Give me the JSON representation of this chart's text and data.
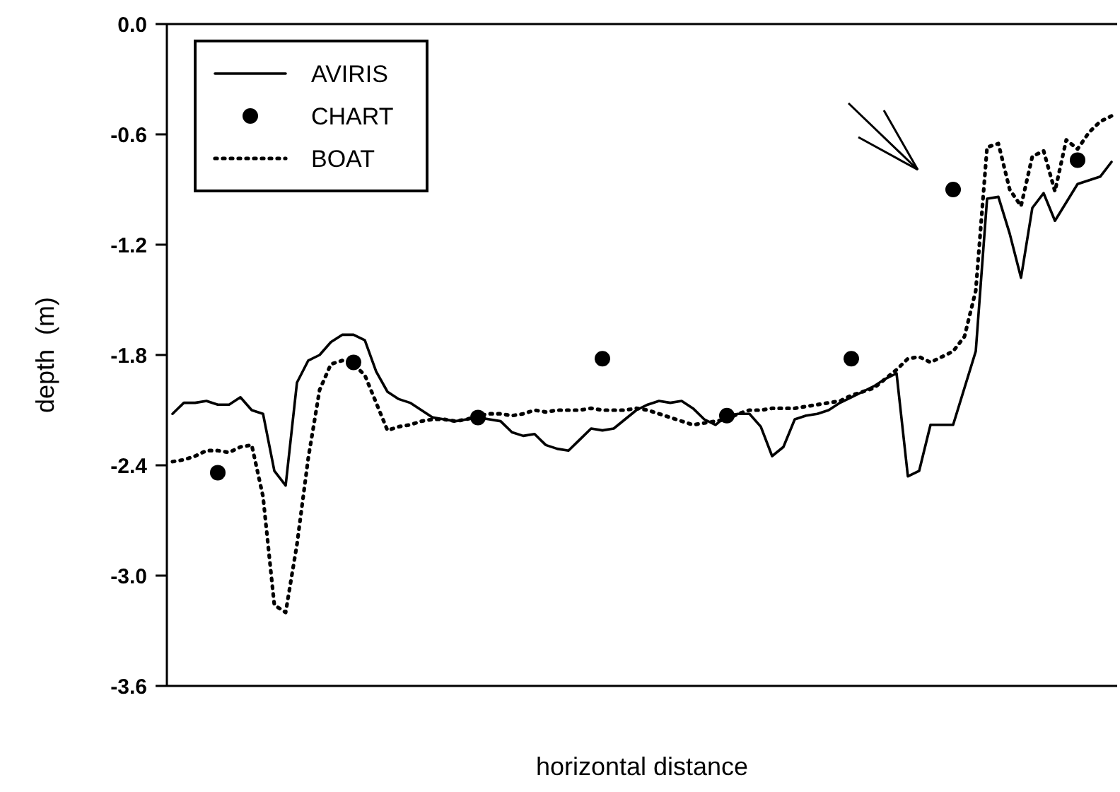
{
  "chart_data": {
    "type": "line",
    "xlabel": "horizontal distance",
    "ylabel": "depth  (m)",
    "ylim": [
      -3.6,
      0
    ],
    "yticks": [
      {
        "value": 0,
        "label": "0.0"
      },
      -0.6,
      -1.2,
      -1.8,
      -2.4,
      {
        "value": -3,
        "label": "-3.0"
      },
      -3.6
    ],
    "tick_labels": "y",
    "grid": false,
    "legend": "top left",
    "categories": [
      null,
      null,
      null,
      null,
      null,
      null,
      null,
      null,
      null,
      null,
      null,
      null,
      null,
      null,
      null,
      null,
      null,
      null,
      null,
      null,
      null,
      null,
      null,
      null,
      null,
      null,
      null,
      null,
      null,
      null,
      null,
      null,
      null,
      null,
      null,
      null,
      null,
      null,
      null,
      null,
      null,
      null,
      null,
      null,
      null,
      null,
      null,
      null,
      null,
      null,
      null,
      null,
      null,
      null,
      null,
      null,
      null,
      null,
      null,
      null,
      null,
      null,
      null,
      null,
      null,
      null,
      null,
      null,
      null,
      null,
      null,
      null,
      null,
      null,
      null,
      null,
      null,
      null,
      null,
      null,
      null,
      null,
      null,
      null
    ],
    "series": [
      {
        "name": "AVIRIS",
        "line_style": "solid",
        "marker": "none",
        "color": "#000000",
        "values": [
          -2.12,
          -2.06,
          -2.06,
          -2.05,
          -2.07,
          -2.07,
          -2.03,
          -2.1,
          -2.12,
          -2.43,
          -2.51,
          -1.95,
          -1.83,
          -1.8,
          -1.73,
          -1.69,
          -1.69,
          -1.72,
          -1.89,
          -2,
          -2.04,
          -2.06,
          -2.1,
          -2.14,
          -2.15,
          -2.16,
          -2.15,
          -2.14,
          -2.15,
          -2.16,
          -2.22,
          -2.24,
          -2.23,
          -2.29,
          -2.31,
          -2.32,
          -2.26,
          -2.2,
          -2.21,
          -2.2,
          -2.15,
          -2.1,
          -2.07,
          -2.05,
          -2.06,
          -2.05,
          -2.09,
          -2.15,
          -2.18,
          -2.13,
          -2.12,
          -2.12,
          -2.19,
          -2.35,
          -2.3,
          -2.15,
          -2.13,
          -2.12,
          -2.1,
          -2.06,
          -2.03,
          -2,
          -1.97,
          -1.93,
          -1.9,
          -2.46,
          -2.43,
          -2.18,
          -2.18,
          -2.18,
          -1.98,
          -1.78,
          -0.95,
          -0.94,
          -1.14,
          -1.38,
          -1,
          -0.92,
          -1.07,
          -0.97,
          -0.87,
          -0.85,
          -0.83,
          -0.75
        ]
      },
      {
        "name": "CHART",
        "type": "scatter",
        "marker": "circle",
        "color": "#000000",
        "values": [
          null,
          null,
          null,
          null,
          -2.44,
          null,
          null,
          null,
          null,
          null,
          null,
          null,
          null,
          null,
          null,
          null,
          -1.84,
          null,
          null,
          null,
          null,
          null,
          null,
          null,
          null,
          null,
          null,
          -2.14,
          null,
          null,
          null,
          null,
          null,
          null,
          null,
          null,
          null,
          null,
          -1.82,
          null,
          null,
          null,
          null,
          null,
          null,
          null,
          null,
          null,
          null,
          -2.13,
          null,
          null,
          null,
          null,
          null,
          null,
          null,
          null,
          null,
          null,
          -1.82,
          null,
          null,
          null,
          null,
          null,
          null,
          null,
          null,
          -0.9,
          null,
          null,
          null,
          null,
          null,
          null,
          null,
          null,
          null,
          null,
          -0.74,
          null,
          null,
          null
        ]
      },
      {
        "name": "BOAT",
        "line_style": "dotted",
        "marker": "none",
        "color": "#000000",
        "values": [
          -2.38,
          -2.37,
          -2.35,
          -2.32,
          -2.32,
          -2.33,
          -2.3,
          -2.29,
          -2.57,
          -3.16,
          -3.2,
          -2.83,
          -2.36,
          -1.99,
          -1.85,
          -1.83,
          -1.85,
          -1.91,
          -2.06,
          -2.21,
          -2.19,
          -2.18,
          -2.16,
          -2.15,
          -2.15,
          -2.16,
          -2.15,
          -2.13,
          -2.12,
          -2.12,
          -2.13,
          -2.12,
          -2.1,
          -2.11,
          -2.1,
          -2.1,
          -2.1,
          -2.09,
          -2.1,
          -2.1,
          -2.1,
          -2.09,
          -2.1,
          -2.12,
          -2.14,
          -2.16,
          -2.18,
          -2.17,
          -2.16,
          -2.15,
          -2.12,
          -2.1,
          -2.1,
          -2.09,
          -2.09,
          -2.09,
          -2.08,
          -2.07,
          -2.06,
          -2.05,
          -2.02,
          -2,
          -1.98,
          -1.93,
          -1.88,
          -1.82,
          -1.81,
          -1.84,
          -1.81,
          -1.78,
          -1.7,
          -1.45,
          -0.67,
          -0.65,
          -0.9,
          -0.99,
          -0.72,
          -0.69,
          -0.91,
          -0.63,
          -0.68,
          -0.59,
          -0.53,
          -0.5
        ]
      }
    ]
  }
}
